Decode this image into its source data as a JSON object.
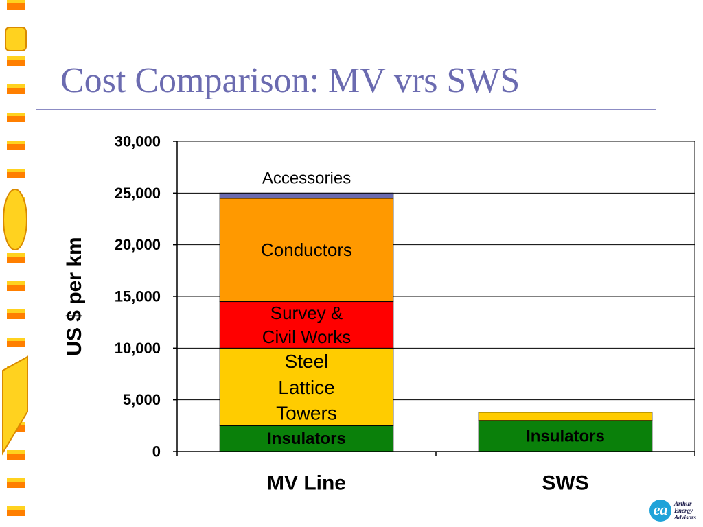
{
  "slide": {
    "title": "Cost Comparison: MV vrs SWS"
  },
  "logo": {
    "name": "Arthur Energy Advisors",
    "lines": [
      "Arthur",
      "Energy",
      "Advisors"
    ],
    "color": "#1fa3d9"
  },
  "chart_data": {
    "type": "bar",
    "stacked": true,
    "categories": [
      "MV Line",
      "SWS"
    ],
    "ylabel": "US $ per km",
    "xlabel": "",
    "ylim": [
      0,
      30000
    ],
    "yticks": [
      0,
      5000,
      10000,
      15000,
      20000,
      25000,
      30000
    ],
    "ytick_labels": [
      "0",
      "5,000",
      "10,000",
      "15,000",
      "20,000",
      "25,000",
      "30,000"
    ],
    "grid": true,
    "legend": "none",
    "series": [
      {
        "name": "Insulators",
        "color": "#0a800a",
        "values": [
          2500,
          3000
        ]
      },
      {
        "name": "Steel Lattice Towers",
        "color": "#ffcc00",
        "values": [
          7500,
          800
        ]
      },
      {
        "name": "Survey & Civil Works",
        "color": "#ff0000",
        "values": [
          4500,
          0
        ]
      },
      {
        "name": "Conductors",
        "color": "#ff9900",
        "values": [
          10000,
          0
        ]
      },
      {
        "name": "Accessories",
        "color": "#6b6bb0",
        "values": [
          500,
          0
        ]
      }
    ],
    "annotations": [
      {
        "lines": [
          "Insulators"
        ],
        "category": 0,
        "series": 0
      },
      {
        "lines": [
          "Steel",
          "Lattice",
          "Towers"
        ],
        "category": 0,
        "series": 1
      },
      {
        "lines": [
          "Survey &",
          "Civil Works"
        ],
        "category": 0,
        "series": 2
      },
      {
        "lines": [
          "Conductors"
        ],
        "category": 0,
        "series": 3
      },
      {
        "lines": [
          "Accessories"
        ],
        "category": 0,
        "series": 4,
        "placement": "above"
      },
      {
        "lines": [
          "Insulators"
        ],
        "category": 1,
        "series": 0
      }
    ]
  }
}
